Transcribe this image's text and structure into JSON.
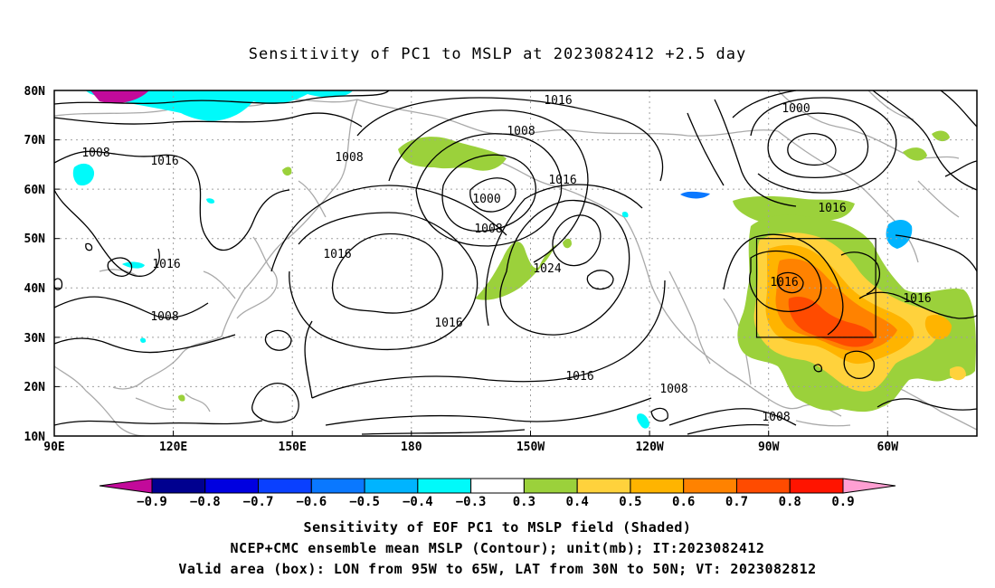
{
  "title": "Sensitivity of PC1 to MSLP at 2023082412 +2.5 day",
  "map": {
    "lat_labels": [
      "80N",
      "70N",
      "60N",
      "50N",
      "40N",
      "30N",
      "20N",
      "10N"
    ],
    "lon_labels": [
      "90E",
      "120E",
      "150E",
      "180",
      "150W",
      "120W",
      "90W",
      "60W"
    ],
    "contour_labels": [
      "1016",
      "1008",
      "1000",
      "1016",
      "1016",
      "1008",
      "1000",
      "1008",
      "1016",
      "1008",
      "1016",
      "1024",
      "1016",
      "1016",
      "1016",
      "1008",
      "1016",
      "1008",
      "1008",
      "1016"
    ],
    "valid_box": {
      "lon_west": "95W",
      "lon_east": "65W",
      "lat_south": "30N",
      "lat_north": "50N"
    }
  },
  "colorbar": {
    "colors": [
      "#c20a9a",
      "#00008f",
      "#0000e0",
      "#0a40ff",
      "#0a78ff",
      "#00b4ff",
      "#00fafa",
      "#ffffff",
      "#9bd13b",
      "#ffd23c",
      "#ffb400",
      "#ff8200",
      "#ff4b00",
      "#ff1400",
      "#ff9fd2"
    ],
    "labels": [
      "-0.9",
      "-0.8",
      "-0.7",
      "-0.6",
      "-0.5",
      "-0.4",
      "-0.3",
      "0.3",
      "0.4",
      "0.5",
      "0.6",
      "0.7",
      "0.8",
      "0.9"
    ]
  },
  "captions": {
    "line1": "Sensitivity of EOF PC1 to MSLP field (Shaded)",
    "line2": "NCEP+CMC ensemble mean MSLP (Contour); unit(mb); IT:2023082412",
    "line3": "Valid area (box): LON from 95W to 65W, LAT from 30N to 50N; VT: 2023082812"
  }
}
